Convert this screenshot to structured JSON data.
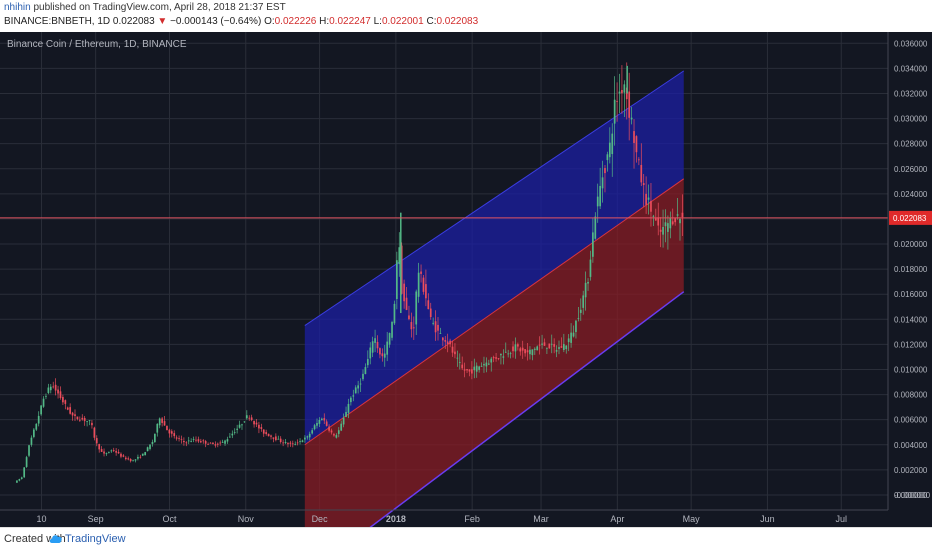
{
  "header": {
    "author": "nhihin",
    "published": " published on TradingView.com, April 28, 2018 21:37 EST",
    "symbol": "BINANCE:BNBETH, 1D",
    "last": " 0.022083 ",
    "down_arrow": "▼",
    "change": " −0.000143 (−0.64%) ",
    "o_label": "O:",
    "o_value": "0.022226",
    "h_label": " H:",
    "h_value": "0.022247",
    "l_label": " L:",
    "l_value": "0.022001",
    "c_label": " C:",
    "c_value": "0.022083"
  },
  "footer": {
    "created_with": "Created with",
    "brand": "TradingView"
  },
  "chart_data": {
    "type": "candlestick",
    "title": "Binance Coin / Ethereum, 1D, BINANCE",
    "x_ticks": [
      "10",
      "Sep",
      "Oct",
      "Nov",
      "Dec",
      "2018",
      "Feb",
      "Mar",
      "Apr",
      "May",
      "Jun",
      "Jul"
    ],
    "y_ticks": [
      "0.036000",
      "0.034000",
      "0.032000",
      "0.030000",
      "0.028000",
      "0.026000",
      "0.024000",
      "0.022000",
      "0.020000",
      "0.018000",
      "0.016000",
      "0.014000",
      "0.012000",
      "0.010000",
      "0.008000",
      "0.006000",
      "0.004000",
      "0.002000",
      "0.000000",
      "-0.000000"
    ],
    "ylim": [
      -0.0012,
      0.0369
    ],
    "grid": true,
    "last_price": 0.022083,
    "last_price_label": "0.022083",
    "price_path": [
      [
        "2017-07-31",
        0.001
      ],
      [
        "2017-08-03",
        0.0014
      ],
      [
        "2017-08-06",
        0.004
      ],
      [
        "2017-08-09",
        0.0058
      ],
      [
        "2017-08-12",
        0.0078
      ],
      [
        "2017-08-15",
        0.0088
      ],
      [
        "2017-08-18",
        0.008
      ],
      [
        "2017-08-21",
        0.007
      ],
      [
        "2017-08-24",
        0.0062
      ],
      [
        "2017-08-28",
        0.006
      ],
      [
        "2017-08-31",
        0.0058
      ],
      [
        "2017-09-02",
        0.0042
      ],
      [
        "2017-09-05",
        0.0032
      ],
      [
        "2017-09-09",
        0.0036
      ],
      [
        "2017-09-13",
        0.003
      ],
      [
        "2017-09-17",
        0.0027
      ],
      [
        "2017-09-21",
        0.0032
      ],
      [
        "2017-09-25",
        0.0042
      ],
      [
        "2017-09-28",
        0.0062
      ],
      [
        "2017-10-01",
        0.0052
      ],
      [
        "2017-10-04",
        0.0046
      ],
      [
        "2017-10-08",
        0.0042
      ],
      [
        "2017-10-12",
        0.0044
      ],
      [
        "2017-10-16",
        0.0042
      ],
      [
        "2017-10-20",
        0.004
      ],
      [
        "2017-10-24",
        0.0042
      ],
      [
        "2017-10-27",
        0.0048
      ],
      [
        "2017-10-31",
        0.0056
      ],
      [
        "2017-11-03",
        0.0064
      ],
      [
        "2017-11-06",
        0.0056
      ],
      [
        "2017-11-09",
        0.005
      ],
      [
        "2017-11-13",
        0.0046
      ],
      [
        "2017-11-17",
        0.0042
      ],
      [
        "2017-11-21",
        0.004
      ],
      [
        "2017-11-24",
        0.0043
      ],
      [
        "2017-11-27",
        0.0046
      ],
      [
        "2017-11-30",
        0.0055
      ],
      [
        "2017-12-03",
        0.0062
      ],
      [
        "2017-12-05",
        0.0055
      ],
      [
        "2017-12-08",
        0.0046
      ],
      [
        "2017-12-10",
        0.0052
      ],
      [
        "2017-12-12",
        0.0062
      ],
      [
        "2017-12-14",
        0.0075
      ],
      [
        "2017-12-17",
        0.0085
      ],
      [
        "2017-12-19",
        0.0092
      ],
      [
        "2017-12-22",
        0.011
      ],
      [
        "2017-12-24",
        0.0128
      ],
      [
        "2017-12-26",
        0.0115
      ],
      [
        "2017-12-28",
        0.0108
      ],
      [
        "2017-12-30",
        0.0125
      ],
      [
        "2018-01-01",
        0.014
      ],
      [
        "2018-01-03",
        0.021
      ],
      [
        "2018-01-04",
        0.0168
      ],
      [
        "2018-01-06",
        0.0148
      ],
      [
        "2018-01-09",
        0.0128
      ],
      [
        "2018-01-11",
        0.018
      ],
      [
        "2018-01-14",
        0.016
      ],
      [
        "2018-01-16",
        0.014
      ],
      [
        "2018-01-19",
        0.013
      ],
      [
        "2018-01-23",
        0.0122
      ],
      [
        "2018-01-26",
        0.011
      ],
      [
        "2018-01-29",
        0.01
      ],
      [
        "2018-02-01",
        0.0098
      ],
      [
        "2018-02-04",
        0.0102
      ],
      [
        "2018-02-08",
        0.0106
      ],
      [
        "2018-02-12",
        0.011
      ],
      [
        "2018-02-16",
        0.0114
      ],
      [
        "2018-02-20",
        0.0118
      ],
      [
        "2018-02-24",
        0.0112
      ],
      [
        "2018-02-28",
        0.0118
      ],
      [
        "2018-03-04",
        0.012
      ],
      [
        "2018-03-08",
        0.0116
      ],
      [
        "2018-03-12",
        0.012
      ],
      [
        "2018-03-15",
        0.013
      ],
      [
        "2018-03-18",
        0.015
      ],
      [
        "2018-03-21",
        0.0172
      ],
      [
        "2018-03-24",
        0.0225
      ],
      [
        "2018-03-27",
        0.0255
      ],
      [
        "2018-03-30",
        0.0278
      ],
      [
        "2018-04-01",
        0.0312
      ],
      [
        "2018-04-03",
        0.0322
      ],
      [
        "2018-04-05",
        0.033
      ],
      [
        "2018-04-06",
        0.0315
      ],
      [
        "2018-04-08",
        0.0295
      ],
      [
        "2018-04-10",
        0.0268
      ],
      [
        "2018-04-13",
        0.024
      ],
      [
        "2018-04-16",
        0.0226
      ],
      [
        "2018-04-19",
        0.0208
      ],
      [
        "2018-04-22",
        0.0215
      ],
      [
        "2018-04-25",
        0.0222
      ],
      [
        "2018-04-28",
        0.0221
      ]
    ],
    "channel": {
      "upper_band": [
        [
          "2017-11-25",
          0.0135
        ],
        [
          "2018-04-28",
          0.0338
        ]
      ],
      "mid_line": [
        [
          "2017-11-25",
          0.004
        ],
        [
          "2018-04-28",
          0.0252
        ]
      ],
      "lower_band": [
        [
          "2017-11-25",
          -0.0065
        ],
        [
          "2018-04-28",
          0.0162
        ]
      ],
      "upper_color": "#1c1ea8",
      "lower_color": "#8c1c24"
    },
    "colors": {
      "background": "#131722",
      "grid": "#2a2e39",
      "up": "#53b987",
      "down": "#eb4d5c",
      "price_line": "#e25361",
      "label_bg": "#e02a2a"
    }
  }
}
